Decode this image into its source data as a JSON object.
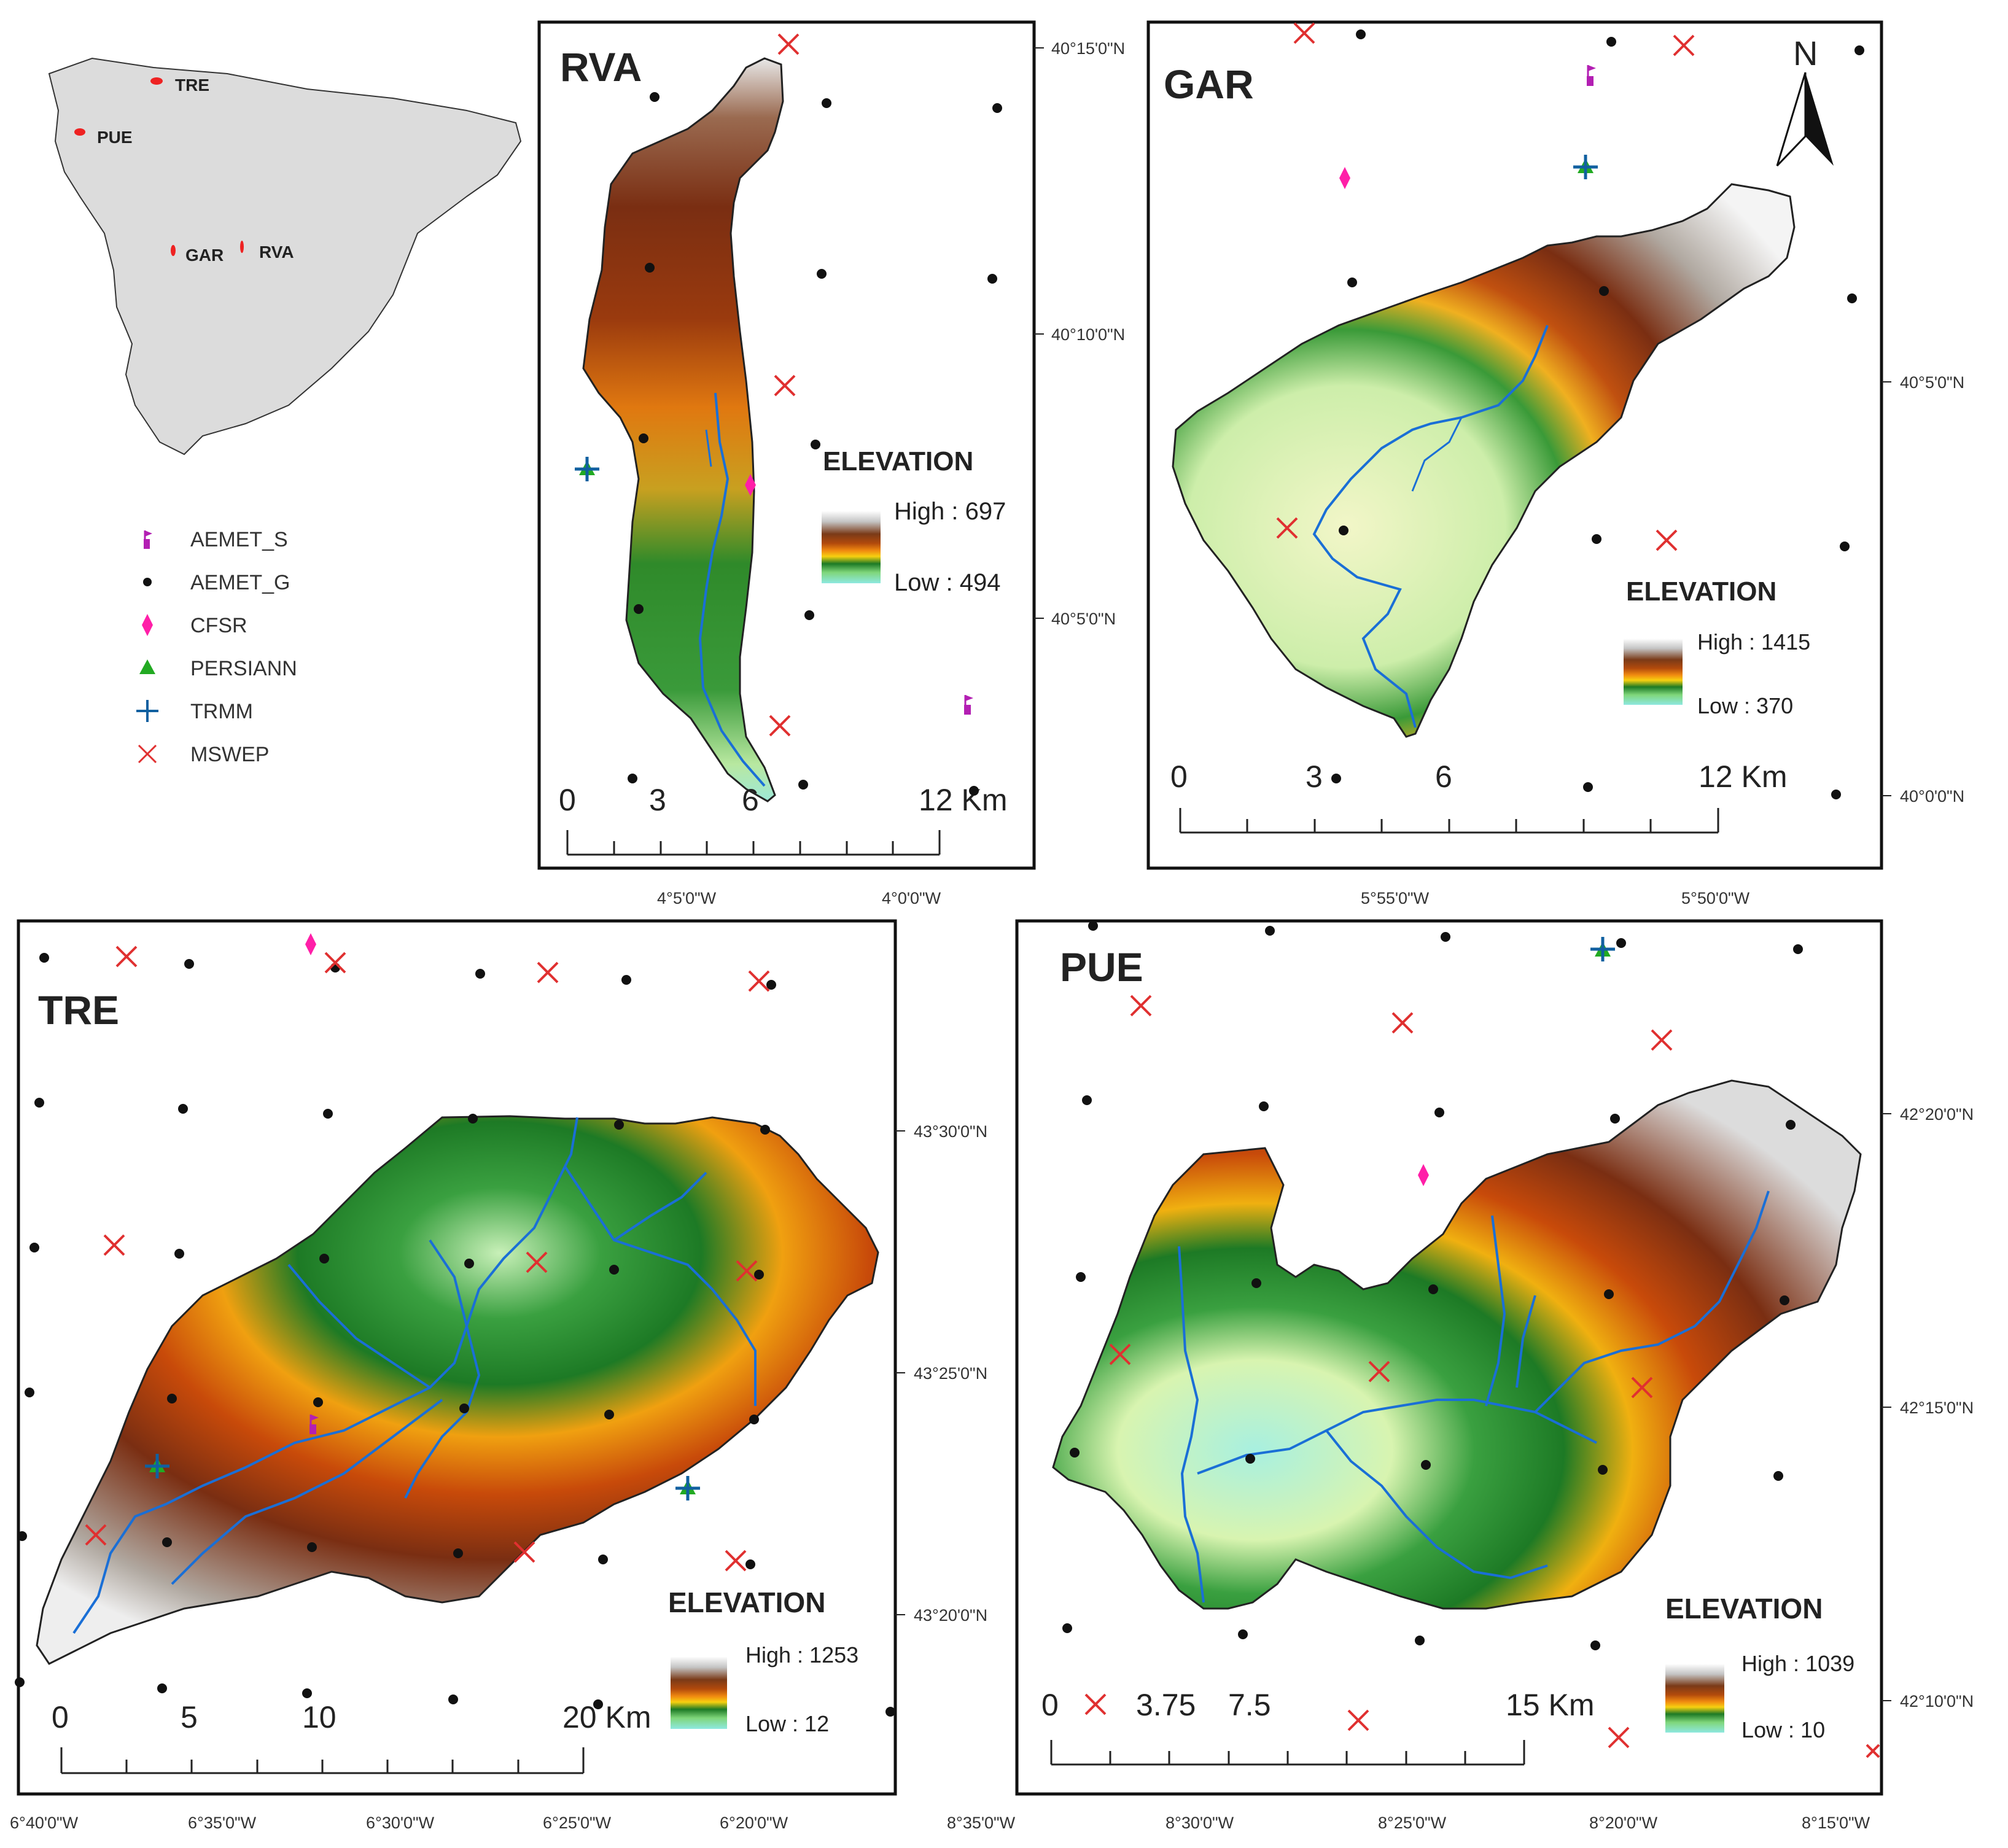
{
  "locator": {
    "labels": [
      "TRE",
      "PUE",
      "GAR",
      "RVA"
    ]
  },
  "legend": {
    "items": [
      {
        "label": "AEMET_S",
        "icon": "flag-icon",
        "color": "#b31fb3"
      },
      {
        "label": "AEMET_G",
        "icon": "dot-icon",
        "color": "#111111"
      },
      {
        "label": "CFSR",
        "icon": "diamond-icon",
        "color": "#ff1fa8"
      },
      {
        "label": "PERSIANN",
        "icon": "triangle-icon",
        "color": "#22aa22"
      },
      {
        "label": "TRMM",
        "icon": "plus-icon",
        "color": "#1060a0"
      },
      {
        "label": "MSWEP",
        "icon": "x-icon",
        "color": "#e03030"
      }
    ]
  },
  "elevation_colors": [
    "#ffffff",
    "#c8c8c8",
    "#8a4a1e",
    "#6b2a10",
    "#c85a0a",
    "#f08a10",
    "#f7d010",
    "#1d7a25",
    "#3aaa3a",
    "#b8f0a0",
    "#8ee8e0"
  ],
  "river_color": "#1a6fd6",
  "north_arrow": "N",
  "panels": {
    "rva": {
      "title": "RVA",
      "elevation_title": "ELEVATION",
      "high": "High : 697",
      "low": "Low : 494",
      "scale_labels": [
        "0",
        "3",
        "6",
        "12 Km"
      ],
      "lat_labels": [
        "40°15'0\"N",
        "40°10'0\"N",
        "40°5'0\"N"
      ],
      "lon_labels": [
        "4°5'0\"W",
        "4°0'0\"W"
      ]
    },
    "gar": {
      "title": "GAR",
      "elevation_title": "ELEVATION",
      "high": "High : 1415",
      "low": "Low : 370",
      "scale_labels": [
        "0",
        "3",
        "6",
        "12 Km"
      ],
      "lat_labels": [
        "40°5'0\"N",
        "40°0'0\"N"
      ],
      "lon_labels": [
        "5°55'0\"W",
        "5°50'0\"W"
      ]
    },
    "tre": {
      "title": "TRE",
      "elevation_title": "ELEVATION",
      "high": "High : 1253",
      "low": "Low : 12",
      "scale_labels": [
        "0",
        "5",
        "10",
        "20 Km"
      ],
      "lat_labels": [
        "43°30'0\"N",
        "43°25'0\"N",
        "43°20'0\"N"
      ],
      "lon_labels": [
        "6°40'0\"W",
        "6°35'0\"W",
        "6°30'0\"W",
        "6°25'0\"W",
        "6°20'0\"W"
      ]
    },
    "pue": {
      "title": "PUE",
      "elevation_title": "ELEVATION",
      "high": "High : 1039",
      "low": "Low : 10",
      "scale_labels": [
        "0",
        "3.75",
        "7.5",
        "15 Km"
      ],
      "lat_labels": [
        "42°20'0\"N",
        "42°15'0\"N",
        "42°10'0\"N"
      ],
      "lon_labels": [
        "8°35'0\"W",
        "8°30'0\"W",
        "8°25'0\"W",
        "8°20'0\"W",
        "8°15'0\"W"
      ]
    }
  }
}
